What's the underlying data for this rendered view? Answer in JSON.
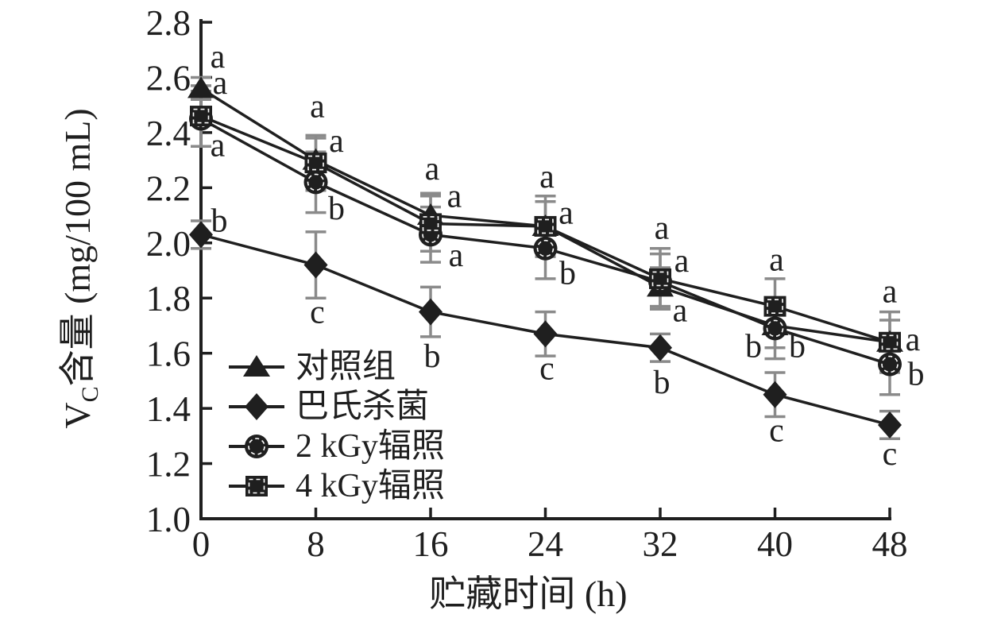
{
  "figure": {
    "background": "#ffffff"
  },
  "chart_data": {
    "type": "line",
    "title": "",
    "xlabel": "贮藏时间 (h)",
    "ylabel": "Vc含量 (mg/100 mL)",
    "ylabel_parts": {
      "main": "V",
      "sub": "C",
      "rest": "含量 (mg/100 mL)"
    },
    "x": [
      0,
      8,
      16,
      24,
      32,
      40,
      48
    ],
    "x_tick_labels": [
      "0",
      "8",
      "16",
      "24",
      "32",
      "40",
      "48"
    ],
    "y_tick_labels": [
      "1.0",
      "1.2",
      "1.4",
      "1.6",
      "1.8",
      "2.0",
      "2.2",
      "2.4",
      "2.6",
      "2.8"
    ],
    "xlim": [
      0,
      48
    ],
    "ylim": [
      1.0,
      2.8
    ],
    "grid": false,
    "legend_position": "inside-lower-left",
    "series": [
      {
        "key": "control",
        "name": "对照组",
        "marker": "triangle",
        "values": [
          2.56,
          2.3,
          2.1,
          2.06,
          1.84,
          1.7,
          1.64
        ],
        "errors": [
          0.04,
          0.08,
          0.08,
          0.09,
          0.07,
          0.08,
          0.08
        ],
        "sig_letters": [
          "a",
          "a",
          "a",
          "a",
          "a",
          "b",
          "a"
        ]
      },
      {
        "key": "pasteurized",
        "name": "巴氏杀菌",
        "marker": "diamond",
        "values": [
          2.03,
          1.92,
          1.75,
          1.67,
          1.62,
          1.45,
          1.34
        ],
        "errors": [
          0.05,
          0.12,
          0.09,
          0.08,
          0.05,
          0.08,
          0.05
        ],
        "sig_letters": [
          "b",
          "c",
          "b",
          "c",
          "b",
          "c",
          "c"
        ]
      },
      {
        "key": "irradiated-2kgy",
        "name": "2 kGy辐照",
        "marker": "circle",
        "values": [
          2.45,
          2.22,
          2.03,
          1.98,
          1.86,
          1.69,
          1.56
        ],
        "errors": [
          0.1,
          0.11,
          0.1,
          0.11,
          0.1,
          0.11,
          0.11
        ],
        "sig_letters": [
          "a",
          "b",
          "a",
          "b",
          "a",
          "b",
          "b"
        ]
      },
      {
        "key": "irradiated-4kgy",
        "name": "4 kGy辐照",
        "marker": "square",
        "values": [
          2.46,
          2.29,
          2.07,
          2.06,
          1.87,
          1.77,
          1.64
        ],
        "errors": [
          0.11,
          0.1,
          0.1,
          0.11,
          0.11,
          0.1,
          0.11
        ],
        "sig_letters": [
          "a",
          "a",
          "a",
          "a",
          "a",
          "a",
          "a"
        ]
      }
    ],
    "annotations": [
      {
        "x": 0,
        "v": 2.67,
        "dx": 21,
        "text": "a"
      },
      {
        "x": 0,
        "v": 2.575,
        "dx": 24,
        "text": "a"
      },
      {
        "x": 0,
        "v": 2.35,
        "dx": 21,
        "text": "a"
      },
      {
        "x": 0,
        "v": 2.075,
        "dx": 23,
        "text": "b"
      },
      {
        "x": 8,
        "v": 2.49,
        "dx": 2,
        "text": "a"
      },
      {
        "x": 8,
        "v": 2.365,
        "dx": 26,
        "text": "a"
      },
      {
        "x": 8,
        "v": 2.12,
        "dx": 26,
        "text": "b"
      },
      {
        "x": 8,
        "v": 1.745,
        "dx": 2,
        "text": "c"
      },
      {
        "x": 16,
        "v": 2.265,
        "dx": 2,
        "text": "a"
      },
      {
        "x": 16,
        "v": 2.165,
        "dx": 30,
        "text": "a"
      },
      {
        "x": 16,
        "v": 1.95,
        "dx": 32,
        "text": "a"
      },
      {
        "x": 16,
        "v": 1.585,
        "dx": 2,
        "text": "b"
      },
      {
        "x": 24,
        "v": 2.235,
        "dx": 2,
        "text": "a"
      },
      {
        "x": 24,
        "v": 2.105,
        "dx": 26,
        "text": "a"
      },
      {
        "x": 24,
        "v": 1.885,
        "dx": 28,
        "text": "b"
      },
      {
        "x": 24,
        "v": 1.54,
        "dx": 2,
        "text": "c"
      },
      {
        "x": 32,
        "v": 2.05,
        "dx": 2,
        "text": "a"
      },
      {
        "x": 32,
        "v": 1.93,
        "dx": 27,
        "text": "a"
      },
      {
        "x": 32,
        "v": 1.75,
        "dx": 25,
        "text": "a"
      },
      {
        "x": 32,
        "v": 1.49,
        "dx": 2,
        "text": "b"
      },
      {
        "x": 40,
        "v": 1.935,
        "dx": 2,
        "text": "a"
      },
      {
        "x": 40,
        "v": 1.62,
        "dx": -27,
        "text": "b"
      },
      {
        "x": 40,
        "v": 1.62,
        "dx": 28,
        "text": "b"
      },
      {
        "x": 40,
        "v": 1.315,
        "dx": 2,
        "text": "c"
      },
      {
        "x": 48,
        "v": 1.82,
        "dx": 0,
        "text": "a"
      },
      {
        "x": 48,
        "v": 1.645,
        "dx": 29,
        "text": "a"
      },
      {
        "x": 48,
        "v": 1.52,
        "dx": 33,
        "text": "b"
      },
      {
        "x": 48,
        "v": 1.23,
        "dx": 0,
        "text": "c"
      }
    ],
    "colors": {
      "line": "#1f1f1f",
      "marker": "#1f1f1f",
      "error_bar": "#8a8a8a",
      "text": "#1f1f1f",
      "background": "#ffffff"
    }
  }
}
